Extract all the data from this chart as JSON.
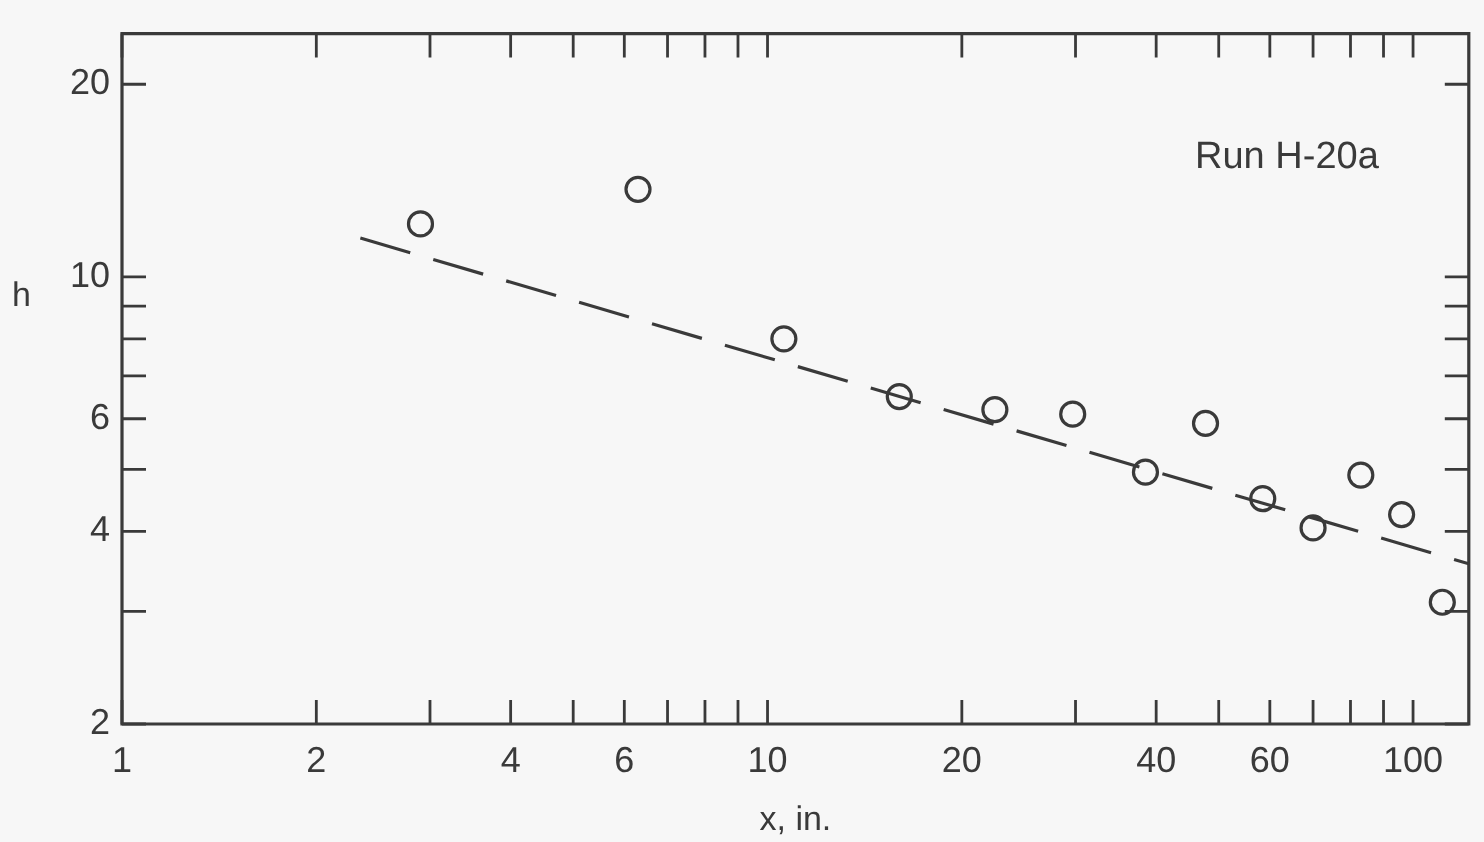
{
  "chart_data": {
    "type": "scatter",
    "xlabel": "x, in.",
    "ylabel": "h",
    "annotations": [
      "Run H-20a"
    ],
    "log": "xy",
    "grid": false,
    "legend": false,
    "xlim": [
      1,
      122
    ],
    "ylim": [
      2,
      24
    ],
    "xticks": [
      1,
      2,
      {
        "value": 3,
        "label": null
      },
      4,
      {
        "value": 5,
        "label": null
      },
      6,
      {
        "value": 7,
        "label": null
      },
      {
        "value": 8,
        "label": null
      },
      {
        "value": 9,
        "label": null
      },
      10,
      20,
      {
        "value": 30,
        "label": null
      },
      40,
      {
        "value": 50,
        "label": null
      },
      60,
      {
        "value": 70,
        "label": null
      },
      {
        "value": 80,
        "label": null
      },
      {
        "value": 90,
        "label": null
      },
      100
    ],
    "yticks": [
      2,
      {
        "value": 3,
        "label": null
      },
      4,
      {
        "value": 5,
        "label": null
      },
      6,
      {
        "value": 7,
        "label": null
      },
      {
        "value": 8,
        "label": null
      },
      {
        "value": 9,
        "label": null
      },
      10,
      20
    ],
    "series": [
      {
        "color": "#3a3a3a",
        "marker": "circle",
        "x": [
          2.9,
          6.3,
          10.6,
          16.0,
          22.5,
          29.7,
          38.5,
          47.7,
          58.5,
          70,
          83,
          96,
          111
        ],
        "values": [
          12.1,
          13.7,
          8.0,
          6.5,
          6.2,
          6.1,
          4.95,
          5.9,
          4.5,
          4.05,
          4.9,
          4.25,
          3.1
        ]
      },
      {
        "type": "line",
        "color": "#3a3a3a",
        "line_style": "dashed",
        "marker": "none",
        "x": [
          2.34,
          122
        ],
        "values": [
          11.5,
          3.56
        ]
      }
    ]
  }
}
